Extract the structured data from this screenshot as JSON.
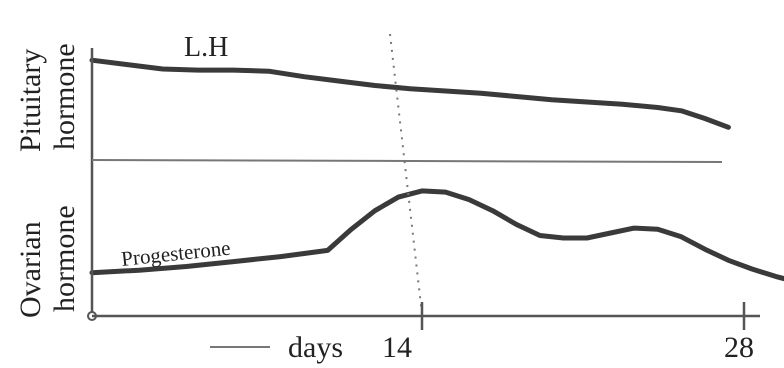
{
  "chart_data": {
    "type": "line",
    "xlabel": "days",
    "x_ticks": [
      14,
      28
    ],
    "xlim": [
      0,
      30
    ],
    "marker_day": 14,
    "panels": [
      {
        "ylabel_lines": [
          "Pituitary",
          "hormone"
        ],
        "series": [
          {
            "name": "L.H",
            "x": [
              0,
              1.5,
              3,
              4.5,
              6,
              7.5,
              9,
              10.5,
              12,
              13.5,
              15,
              16.5,
              18,
              19.5,
              21,
              22.5,
              24,
              25,
              26,
              27
            ],
            "y": [
              78,
              74,
              70,
              69,
              69,
              68,
              63,
              59,
              55,
              52,
              50,
              48,
              45,
              42,
              40,
              38,
              35,
              32,
              25,
              17
            ]
          }
        ]
      },
      {
        "ylabel_lines": [
          "Ovarian",
          "hormone"
        ],
        "series": [
          {
            "name": "Progesterone",
            "x": [
              0,
              2,
              4,
              6,
              8,
              10,
              11,
              12,
              13,
              14,
              15,
              16,
              17,
              18,
              19,
              20,
              21,
              22,
              23,
              24,
              25,
              26,
              27,
              28,
              29,
              30
            ],
            "y": [
              22,
              24,
              27,
              31,
              35,
              40,
              57,
              72,
              83,
              88,
              87,
              81,
              72,
              61,
              52,
              50,
              50,
              54,
              58,
              57,
              51,
              41,
              32,
              25,
              19,
              14
            ]
          }
        ]
      }
    ]
  }
}
